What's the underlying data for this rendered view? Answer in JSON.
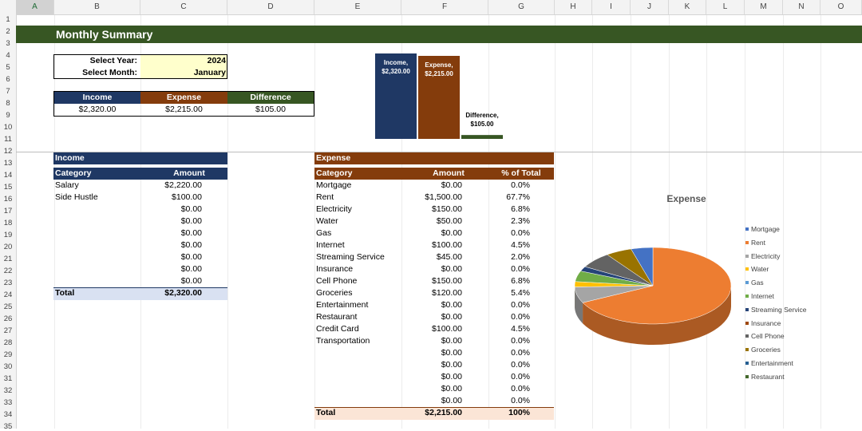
{
  "sheet": {
    "columns": [
      "A",
      "B",
      "C",
      "D",
      "E",
      "F",
      "G",
      "H",
      "I",
      "J",
      "K",
      "L",
      "M",
      "N",
      "O"
    ],
    "rows": [
      "1",
      "2",
      "3",
      "4",
      "5",
      "6",
      "7",
      "8",
      "9",
      "10",
      "11",
      "12",
      "13",
      "14",
      "15",
      "16",
      "17",
      "18",
      "19",
      "20",
      "21",
      "22",
      "23",
      "24",
      "25",
      "26",
      "27",
      "28",
      "29",
      "30",
      "31",
      "32",
      "33",
      "34",
      "35"
    ],
    "title": "Monthly Summary"
  },
  "selector": {
    "year_label": "Select Year:",
    "year_value": "2024",
    "month_label": "Select Month:",
    "month_value": "January"
  },
  "summary": {
    "headers": [
      "Income",
      "Expense",
      "Difference"
    ],
    "values": [
      "$2,320.00",
      "$2,215.00",
      "$105.00"
    ]
  },
  "colors": {
    "income": "#1f3864",
    "expense": "#843c0c",
    "difference": "#375623"
  },
  "bar_chart": {
    "bars": [
      {
        "label1": "Income,",
        "label2": "$2,320.00",
        "value": 2320.0
      },
      {
        "label1": "Expense,",
        "label2": "$2,215.00",
        "value": 2215.0
      },
      {
        "label1": "Difference,",
        "label2": "$105.00",
        "value": 105.0
      }
    ]
  },
  "income_table": {
    "section": "Income",
    "headers": [
      "Category",
      "Amount"
    ],
    "rows": [
      [
        "Salary",
        "$2,220.00"
      ],
      [
        "Side Hustle",
        "$100.00"
      ],
      [
        "",
        "$0.00"
      ],
      [
        "",
        "$0.00"
      ],
      [
        "",
        "$0.00"
      ],
      [
        "",
        "$0.00"
      ],
      [
        "",
        "$0.00"
      ],
      [
        "",
        "$0.00"
      ],
      [
        "",
        "$0.00"
      ]
    ],
    "total": [
      "Total",
      "$2,320.00"
    ]
  },
  "expense_table": {
    "section": "Expense",
    "headers": [
      "Category",
      "Amount",
      "% of Total"
    ],
    "rows": [
      [
        "Mortgage",
        "$0.00",
        "0.0%"
      ],
      [
        "Rent",
        "$1,500.00",
        "67.7%"
      ],
      [
        "Electricity",
        "$150.00",
        "6.8%"
      ],
      [
        "Water",
        "$50.00",
        "2.3%"
      ],
      [
        "Gas",
        "$0.00",
        "0.0%"
      ],
      [
        "Internet",
        "$100.00",
        "4.5%"
      ],
      [
        "Streaming Service",
        "$45.00",
        "2.0%"
      ],
      [
        "Insurance",
        "$0.00",
        "0.0%"
      ],
      [
        "Cell Phone",
        "$150.00",
        "6.8%"
      ],
      [
        "Groceries",
        "$120.00",
        "5.4%"
      ],
      [
        "Entertainment",
        "$0.00",
        "0.0%"
      ],
      [
        "Restaurant",
        "$0.00",
        "0.0%"
      ],
      [
        "Credit Card",
        "$100.00",
        "4.5%"
      ],
      [
        "Transportation",
        "$0.00",
        "0.0%"
      ],
      [
        "",
        "$0.00",
        "0.0%"
      ],
      [
        "",
        "$0.00",
        "0.0%"
      ],
      [
        "",
        "$0.00",
        "0.0%"
      ],
      [
        "",
        "$0.00",
        "0.0%"
      ],
      [
        "",
        "$0.00",
        "0.0%"
      ]
    ],
    "total": [
      "Total",
      "$2,215.00",
      "100%"
    ]
  },
  "chart_data": {
    "type": "pie",
    "title": "Expense",
    "categories": [
      "Mortgage",
      "Rent",
      "Electricity",
      "Water",
      "Gas",
      "Internet",
      "Streaming Service",
      "Insurance",
      "Cell Phone",
      "Groceries",
      "Entertainment",
      "Restaurant",
      "Credit Card",
      "Transportation"
    ],
    "values": [
      0,
      1500,
      150,
      50,
      0,
      100,
      45,
      0,
      150,
      120,
      0,
      0,
      100,
      0
    ],
    "legend_entries": [
      "Mortgage",
      "Rent",
      "Electricity",
      "Water",
      "Gas",
      "Internet",
      "Streaming Service",
      "Insurance",
      "Cell Phone",
      "Groceries",
      "Entertainment",
      "Restaurant"
    ],
    "colors": [
      "#4472c4",
      "#ed7d31",
      "#a5a5a5",
      "#ffc000",
      "#5b9bd5",
      "#70ad47",
      "#264478",
      "#9e480e",
      "#636363",
      "#997300",
      "#255e91",
      "#43682b",
      "#4472c4",
      "#ed7d31"
    ],
    "legend_position": "right"
  }
}
